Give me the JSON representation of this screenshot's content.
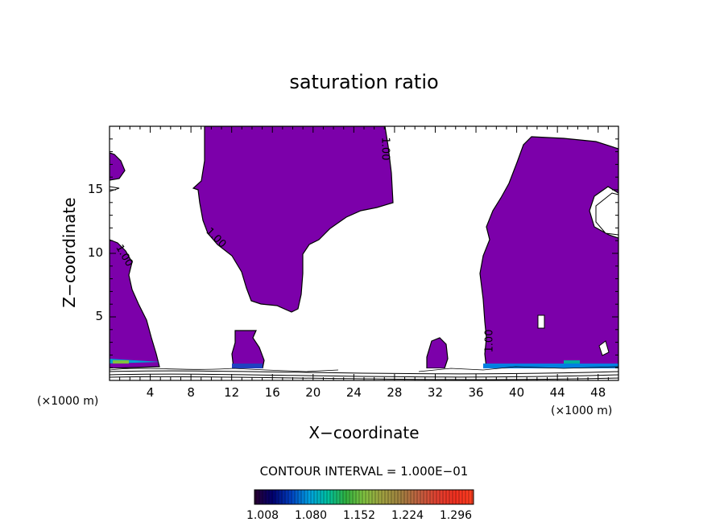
{
  "chart_data": {
    "type": "heatmap",
    "title": "saturation ratio",
    "xlabel": "X−coordinate",
    "ylabel": "Z−coordinate",
    "x_unit": "(×1000 m)",
    "x_unit_right": "(×1000 m)",
    "xlim": [
      0,
      50
    ],
    "ylim": [
      0,
      20
    ],
    "x_ticks": [
      4,
      8,
      12,
      16,
      20,
      24,
      28,
      32,
      36,
      40,
      44,
      48
    ],
    "y_ticks": [
      5,
      10,
      15
    ],
    "contour_interval_label": "CONTOUR INTERVAL = 1.000E−01",
    "contour_label": "1.00",
    "fill_color": "#7c00aa",
    "colorbar": {
      "ticks": [
        "1.008",
        "1.080",
        "1.152",
        "1.224",
        "1.296"
      ],
      "colors": [
        "#2a0030",
        "#000070",
        "#0040c0",
        "#00a0e0",
        "#00c0a0",
        "#30b040",
        "#80c040",
        "#a0a040",
        "#a08040",
        "#c06040",
        "#e04030",
        "#f03020",
        "#ff4020"
      ]
    }
  }
}
